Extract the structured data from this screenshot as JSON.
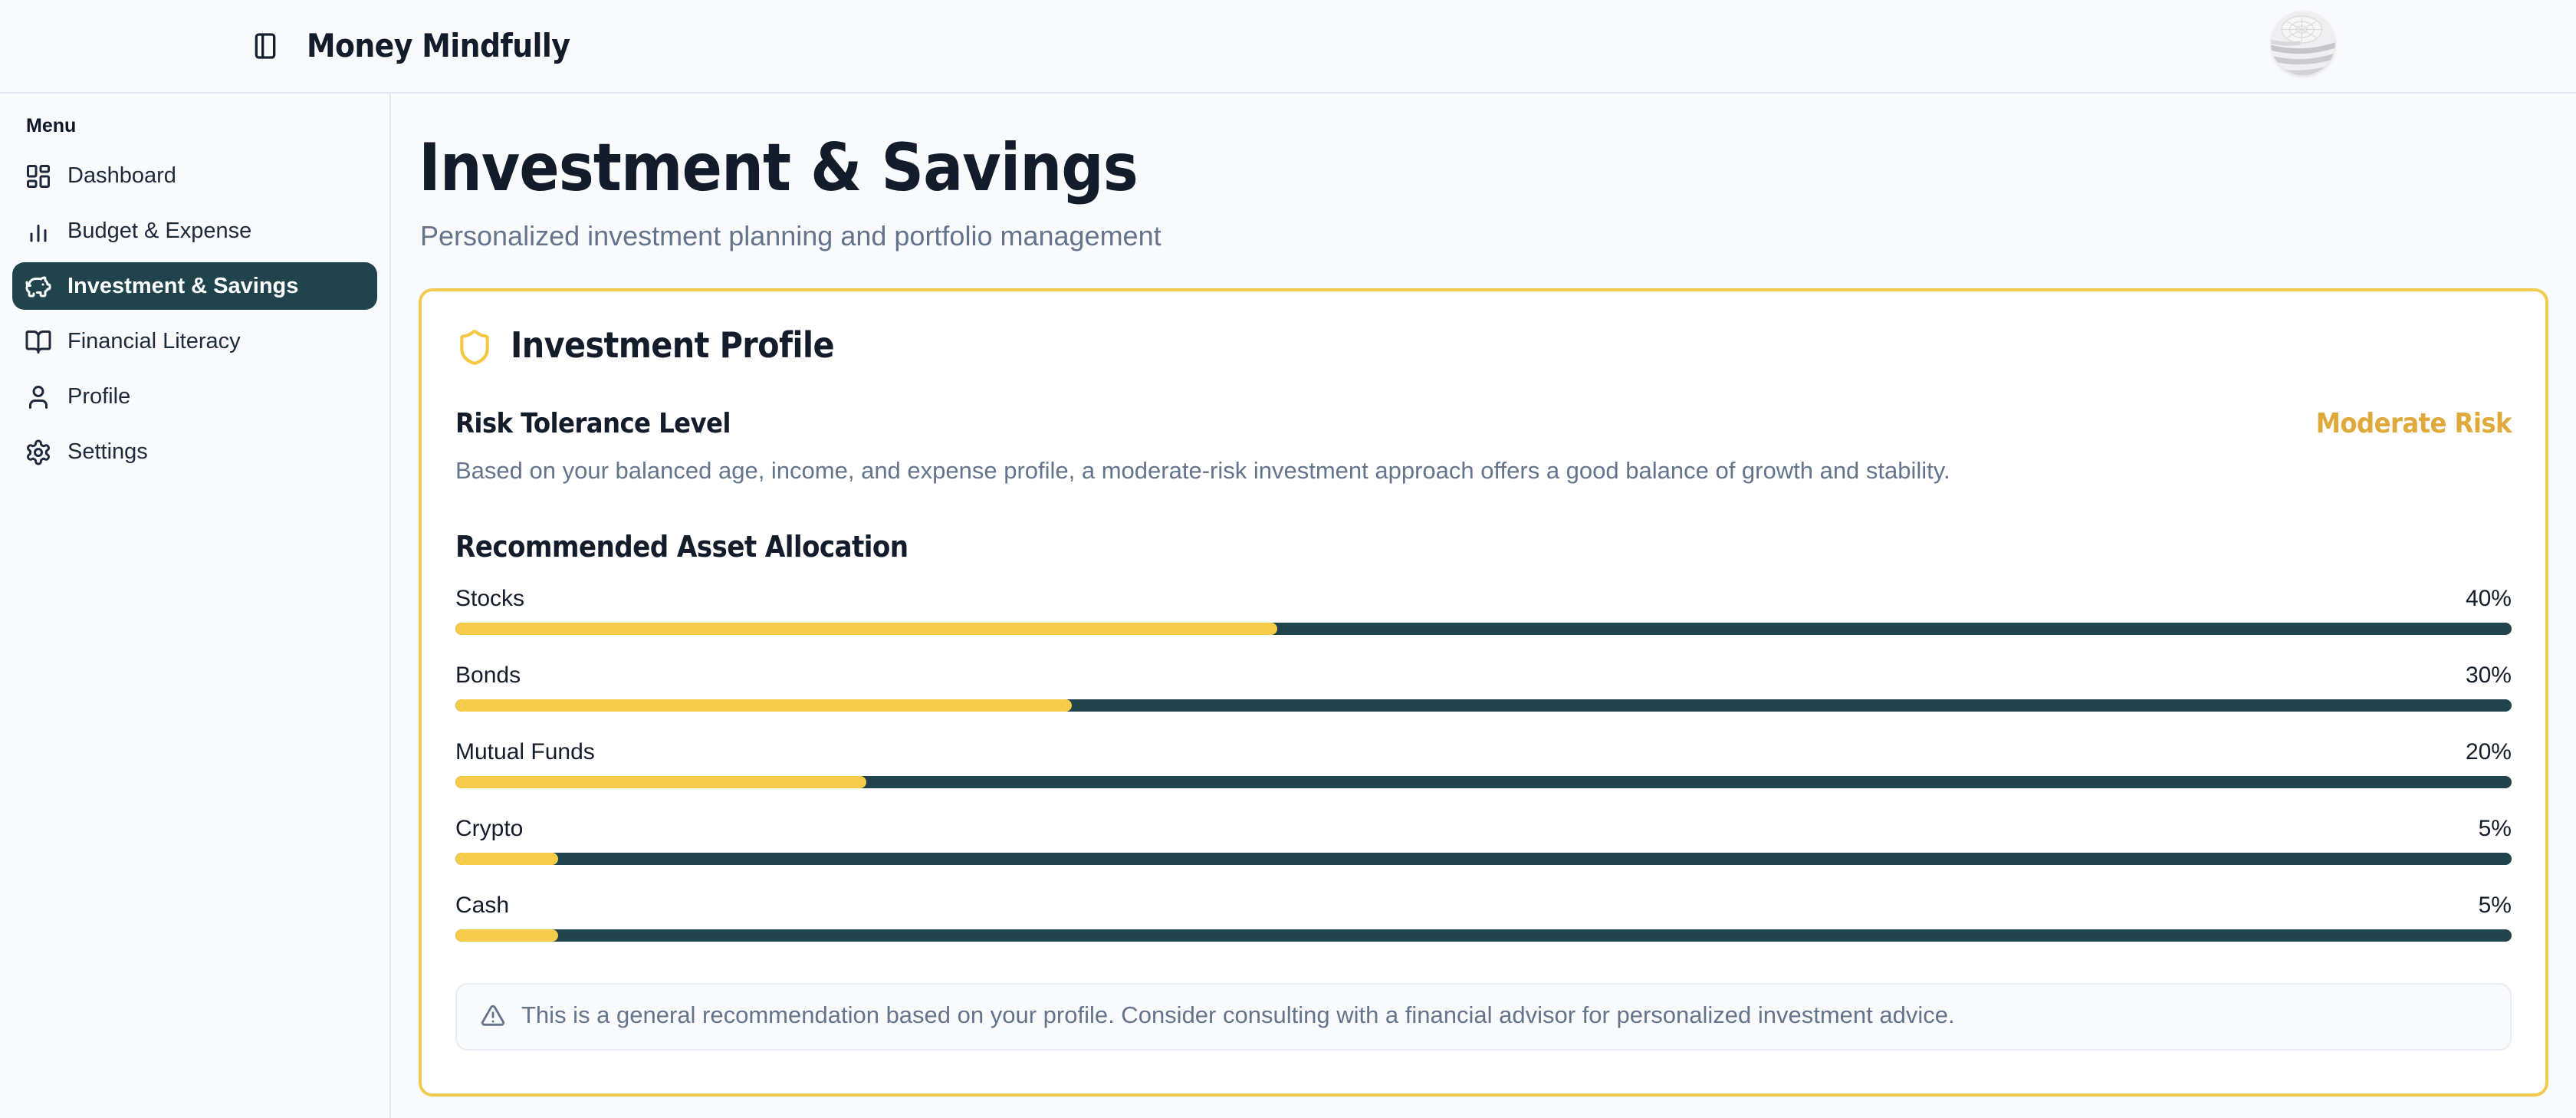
{
  "header": {
    "app_title": "Money Mindfully"
  },
  "sidebar": {
    "section_label": "Menu",
    "items": [
      {
        "label": "Dashboard",
        "icon": "dashboard-icon",
        "active": false
      },
      {
        "label": "Budget & Expense",
        "icon": "bar-chart-icon",
        "active": false
      },
      {
        "label": "Investment & Savings",
        "icon": "piggy-bank-icon",
        "active": true
      },
      {
        "label": "Financial Literacy",
        "icon": "book-open-icon",
        "active": false
      },
      {
        "label": "Profile",
        "icon": "user-icon",
        "active": false
      },
      {
        "label": "Settings",
        "icon": "gear-icon",
        "active": false
      }
    ]
  },
  "page": {
    "title": "Investment & Savings",
    "subtitle": "Personalized investment planning and portfolio management"
  },
  "profile_card": {
    "title": "Investment Profile",
    "risk": {
      "heading": "Risk Tolerance Level",
      "level": "Moderate Risk",
      "description": "Based on your balanced age, income, and expense profile, a moderate-risk investment approach offers a good balance of growth and stability."
    },
    "allocation": {
      "heading": "Recommended Asset Allocation",
      "items": [
        {
          "label": "Stocks",
          "percent": 40
        },
        {
          "label": "Bonds",
          "percent": 30
        },
        {
          "label": "Mutual Funds",
          "percent": 20
        },
        {
          "label": "Crypto",
          "percent": 5
        },
        {
          "label": "Cash",
          "percent": 5
        }
      ]
    },
    "note": "This is a general recommendation based on your profile. Consider consulting with a financial advisor for personalized investment advice."
  },
  "colors": {
    "accent_yellow": "#f5cc49",
    "card_border": "#f2ca4e",
    "teal_dark": "#20434c",
    "risk_badge": "#e0a93b",
    "text_dark": "#131c2b",
    "text_muted": "#64748b",
    "background": "#f8fafc"
  }
}
